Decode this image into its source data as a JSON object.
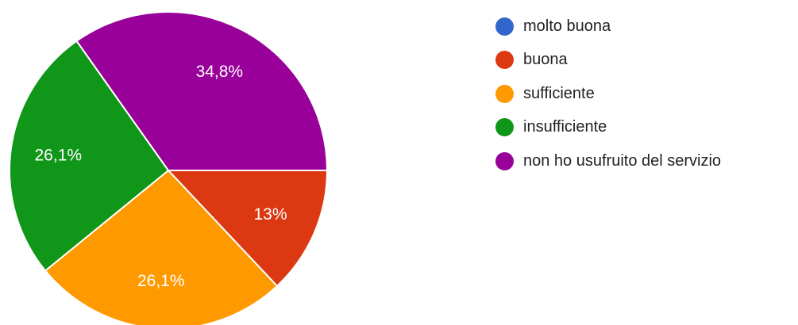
{
  "chart_data": {
    "type": "pie",
    "title": "",
    "legend_position": "right",
    "slices": [
      {
        "label": "molto buona",
        "value": 0,
        "display": "",
        "color": "#3366cc"
      },
      {
        "label": "buona",
        "value": 13,
        "display": "13%",
        "color": "#dc3912"
      },
      {
        "label": "sufficiente",
        "value": 26.1,
        "display": "26,1%",
        "color": "#ff9900"
      },
      {
        "label": "insufficiente",
        "value": 26.1,
        "display": "26,1%",
        "color": "#109618"
      },
      {
        "label": "non ho usufruito del servizio",
        "value": 34.8,
        "display": "34,8%",
        "color": "#990099"
      }
    ]
  }
}
